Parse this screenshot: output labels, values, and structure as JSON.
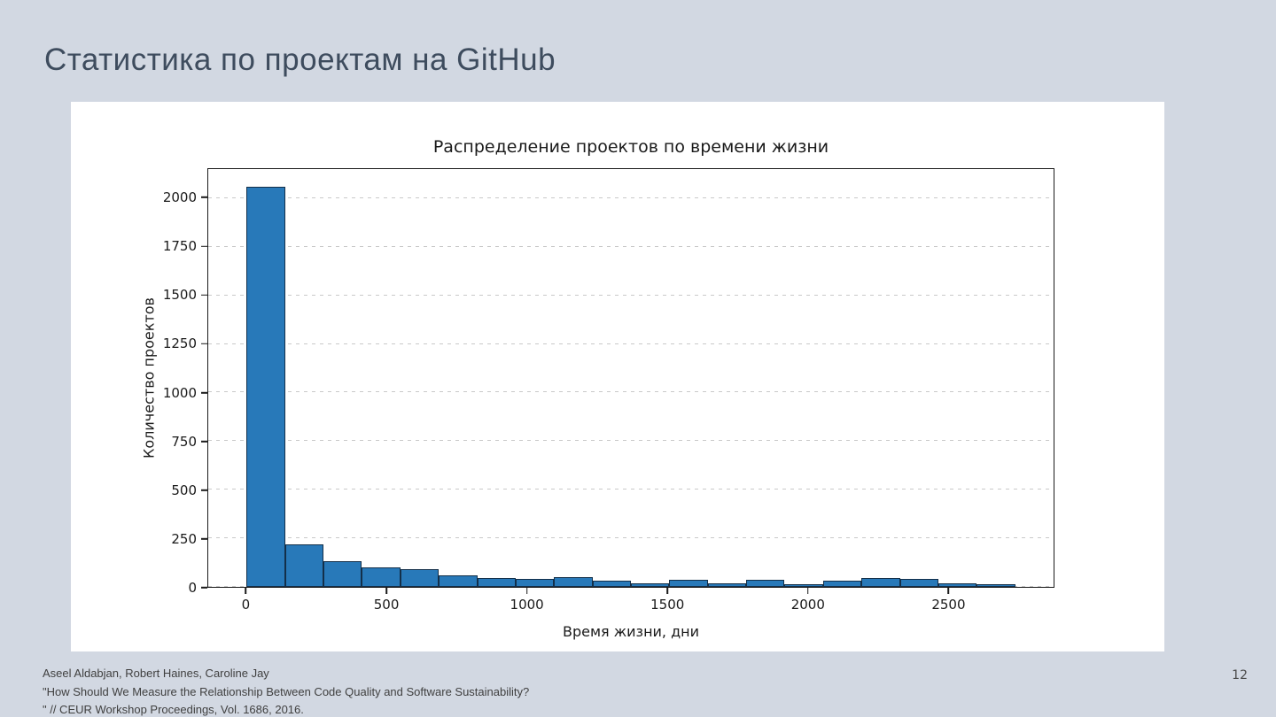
{
  "slide": {
    "title": "Статистика по проектам на GitHub",
    "page_number": "12",
    "footer_lines": [
      "Aseel Aldabjan, Robert Haines, Caroline Jay",
      "\"How Should We Measure the Relationship Between Code Quality and Software Sustainability?",
      "\" // CEUR Workshop Proceedings, Vol. 1686, 2016."
    ]
  },
  "colors": {
    "slide_background": "#d2d8e2",
    "panel_background": "#ffffff",
    "title_color": "#3e4c5e",
    "bar_fill": "#2879b9",
    "bar_edge": "#132f49",
    "grid_color": "#c9c9c9"
  },
  "chart_data": {
    "type": "bar",
    "subtype": "histogram",
    "title": "Распределение проектов по времени жизни",
    "xlabel": "Время жизни, дни",
    "ylabel": "Количество проектов",
    "bin_start": 0,
    "bin_width": 137,
    "values": [
      2060,
      220,
      130,
      100,
      90,
      60,
      45,
      40,
      50,
      30,
      20,
      35,
      20,
      35,
      15,
      30,
      45,
      40,
      20,
      15
    ],
    "xlim": [
      -137,
      2877
    ],
    "ylim": [
      0,
      2150
    ],
    "xticks": [
      0,
      500,
      1000,
      1500,
      2000,
      2500
    ],
    "yticks": [
      0,
      250,
      500,
      750,
      1000,
      1250,
      1500,
      1750,
      2000
    ],
    "grid": "horizontal-dashed",
    "legend": "none"
  }
}
